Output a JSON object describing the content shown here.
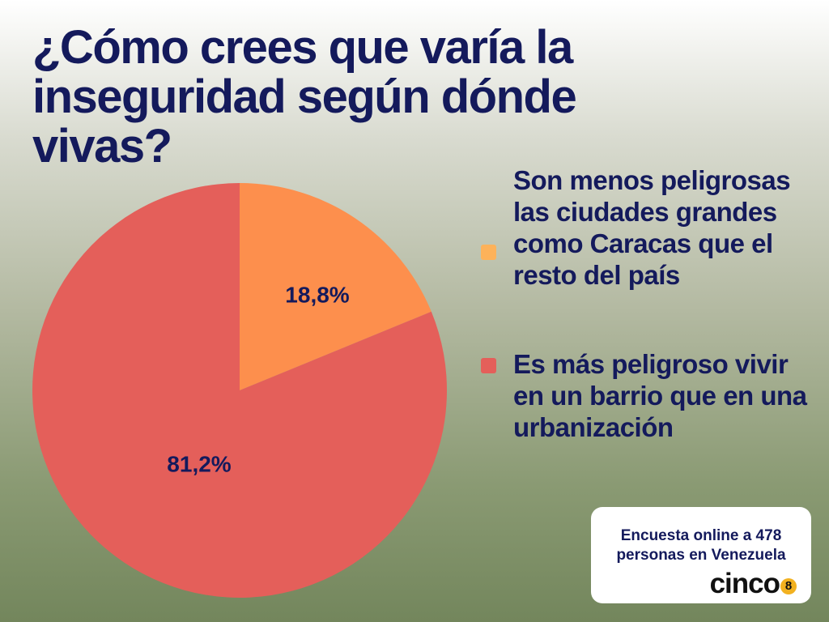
{
  "title": "¿Cómo crees que varía la inseguridad según dónde vivas?",
  "chart_data": {
    "type": "pie",
    "title": "¿Cómo crees que varía la inseguridad según dónde vivas?",
    "categories": [
      "Son menos peligrosas las ciudades grandes como Caracas que el resto del país",
      "Es más peligroso vivir en un barrio que en una urbanización"
    ],
    "values": [
      18.8,
      81.2
    ],
    "value_labels": [
      "18,8%",
      "81,2%"
    ],
    "colors": [
      "#fd8f4d",
      "#e45f5a"
    ],
    "legend_colors": [
      "#fdb25a",
      "#e45f5a"
    ],
    "legend_position": "right"
  },
  "source": {
    "text": "Encuesta online a 478 personas en Venezuela"
  },
  "logo": {
    "text": "cinco",
    "badge": "8"
  }
}
